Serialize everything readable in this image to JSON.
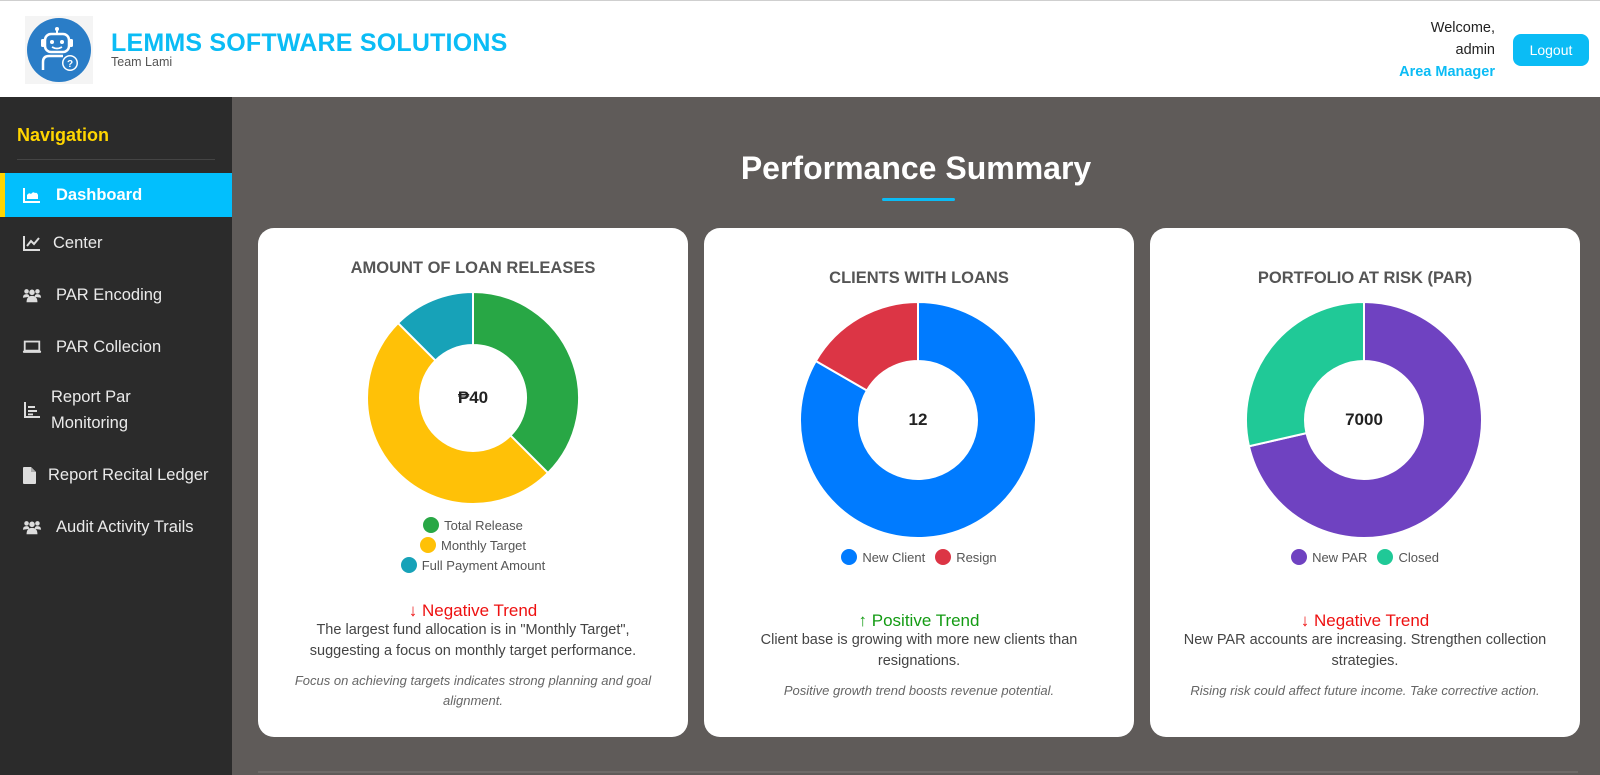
{
  "header": {
    "brand_title": "LEMMS SOFTWARE SOLUTIONS",
    "brand_subtitle": "Team Lami",
    "logo_icon": "robot-help-icon",
    "welcome": "Welcome,",
    "username": "admin",
    "role": "Area Manager",
    "logout_label": "Logout"
  },
  "sidebar": {
    "title": "Navigation",
    "items": [
      {
        "label": "Dashboard",
        "icon": "area-chart-icon",
        "active": true
      },
      {
        "label": "Center",
        "icon": "line-chart-icon",
        "active": false
      },
      {
        "label": "PAR Encoding",
        "icon": "users-icon",
        "active": false
      },
      {
        "label": "PAR Collecion",
        "icon": "laptop-icon",
        "active": false
      },
      {
        "label": "Report Par Monitoring",
        "icon": "bar-chart-icon",
        "active": false
      },
      {
        "label": "Report Recital Ledger",
        "icon": "file-icon",
        "active": false
      },
      {
        "label": "Audit Activity Trails",
        "icon": "users-icon",
        "active": false
      }
    ]
  },
  "main": {
    "title": "Performance Summary",
    "cards": [
      {
        "title": "AMOUNT OF LOAN RELEASES",
        "center_value": "₱40",
        "legend": [
          {
            "label": "Total Release",
            "color": "#28a745"
          },
          {
            "label": "Monthly Target",
            "color": "#ffc107"
          },
          {
            "label": "Full Payment Amount",
            "color": "#17a2b8"
          }
        ],
        "trend_icon": "arrow-down-icon",
        "trend_arrow": "↓",
        "trend_label": "Negative Trend",
        "insight": "The largest fund allocation is in \"Monthly Target\", suggesting a focus on monthly target performance.",
        "note": "Focus on achieving targets indicates strong planning and goal alignment."
      },
      {
        "title": "CLIENTS WITH LOANS",
        "center_value": "12",
        "legend": [
          {
            "label": "New Client",
            "color": "#007bff"
          },
          {
            "label": "Resign",
            "color": "#dc3545"
          }
        ],
        "trend_icon": "arrow-up-icon",
        "trend_arrow": "↑",
        "trend_label": "Positive Trend",
        "insight": "Client base is growing with more new clients than resignations.",
        "note": "Positive growth trend boosts revenue potential."
      },
      {
        "title": "PORTFOLIO AT RISK (PAR)",
        "center_value": "7000",
        "legend": [
          {
            "label": "New PAR",
            "color": "#6f42c1"
          },
          {
            "label": "Closed",
            "color": "#20c997"
          }
        ],
        "trend_icon": "arrow-down-icon",
        "trend_arrow": "↓",
        "trend_label": "Negative Trend",
        "insight": "New PAR accounts are increasing. Strengthen collection strategies.",
        "note": "Rising risk could affect future income. Take corrective action."
      }
    ]
  },
  "colors": {
    "accent": "#0bbcf5",
    "nav_title": "#ffd500",
    "sidebar_bg": "#2b2b2b",
    "main_bg": "#5f5b59",
    "negative": "#ee1111",
    "positive": "#139b13"
  },
  "chart_data": [
    {
      "type": "pie",
      "title": "AMOUNT OF LOAN RELEASES",
      "categories": [
        "Total Release",
        "Monthly Target",
        "Full Payment Amount"
      ],
      "values": [
        15,
        20,
        5
      ],
      "colors": [
        "#28a745",
        "#ffc107",
        "#17a2b8"
      ],
      "center_label": "₱40",
      "legend_position": "bottom",
      "donut": true
    },
    {
      "type": "pie",
      "title": "CLIENTS WITH LOANS",
      "categories": [
        "New Client",
        "Resign"
      ],
      "values": [
        10,
        2
      ],
      "colors": [
        "#007bff",
        "#dc3545"
      ],
      "center_label": "12",
      "legend_position": "bottom",
      "donut": true
    },
    {
      "type": "pie",
      "title": "PORTFOLIO AT RISK (PAR)",
      "categories": [
        "New PAR",
        "Closed"
      ],
      "values": [
        5000,
        2000
      ],
      "colors": [
        "#6f42c1",
        "#20c997"
      ],
      "center_label": "7000",
      "legend_position": "bottom",
      "donut": true
    }
  ]
}
